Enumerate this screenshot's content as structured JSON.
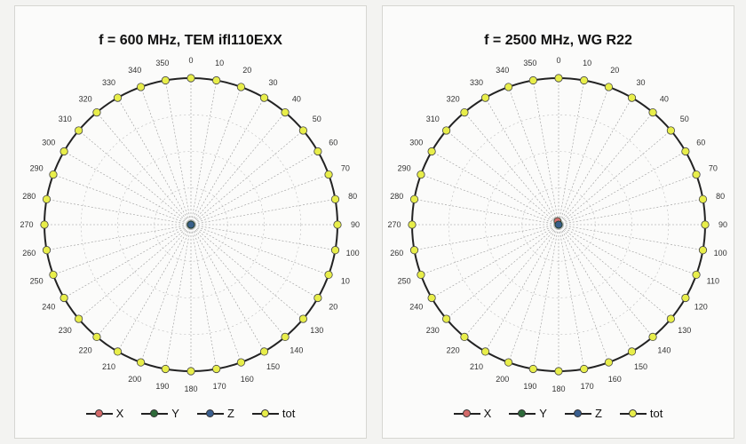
{
  "chart_data": [
    {
      "type": "polar",
      "title": "f = 600 MHz, TEM ifl110EXX",
      "theta_ticks": [
        "0",
        "10",
        "20",
        "30",
        "40",
        "50",
        "60",
        "70",
        "80",
        "90",
        "100",
        "110",
        "120",
        "130",
        "140",
        "150",
        "160",
        "170",
        "180",
        "190",
        "200",
        "210",
        "220",
        "230",
        "240",
        "250",
        "260",
        "270",
        "280",
        "290",
        "300",
        "310",
        "320",
        "330",
        "340",
        "350"
      ],
      "theta_tick_labels_shown": [
        "0",
        "10",
        "20",
        "30",
        "40",
        "50",
        "60",
        "70",
        "80",
        "90",
        "100",
        "10",
        "20",
        "130",
        "140",
        "150",
        "160",
        "170",
        "180",
        "190",
        "200",
        "210",
        "220",
        "230",
        "240",
        "250",
        "260",
        "270",
        "280",
        "290",
        "300",
        "310",
        "320",
        "330",
        "340",
        "350"
      ],
      "grid": true,
      "legend_position": "bottom",
      "series": [
        {
          "name": "X",
          "color": "#d46a6a",
          "r": 0.03
        },
        {
          "name": "Y",
          "color": "#2e6b3a",
          "r": 0.05
        },
        {
          "name": "Z",
          "color": "#3a5f8f",
          "r": 0.035
        },
        {
          "name": "tot",
          "color": "#e8ee4a",
          "r": 1.0
        }
      ]
    },
    {
      "type": "polar",
      "title": "f = 2500 MHz, WG R22",
      "theta_ticks": [
        "0",
        "10",
        "20",
        "30",
        "40",
        "50",
        "60",
        "70",
        "80",
        "90",
        "100",
        "110",
        "120",
        "130",
        "140",
        "150",
        "160",
        "170",
        "180",
        "190",
        "200",
        "210",
        "220",
        "230",
        "240",
        "250",
        "260",
        "270",
        "280",
        "290",
        "300",
        "310",
        "320",
        "330",
        "340",
        "350"
      ],
      "theta_tick_labels_shown": [
        "0",
        "10",
        "20",
        "30",
        "40",
        "50",
        "60",
        "70",
        "80",
        "90",
        "100",
        "110",
        "120",
        "130",
        "140",
        "150",
        "160",
        "170",
        "180",
        "190",
        "200",
        "210",
        "220",
        "230",
        "240",
        "250",
        "260",
        "270",
        "280",
        "290",
        "300",
        "310",
        "320",
        "330",
        "340",
        "350"
      ],
      "grid": true,
      "legend_position": "bottom",
      "series": [
        {
          "name": "X",
          "color": "#d46a6a",
          "r": 0.04
        },
        {
          "name": "Y",
          "color": "#2e6b3a",
          "r": 0.06
        },
        {
          "name": "Z",
          "color": "#3a5f8f",
          "r": 0.04
        },
        {
          "name": "tot",
          "color": "#e8ee4a",
          "r": 1.0
        }
      ]
    }
  ],
  "legend": {
    "x_label": "X",
    "y_label": "Y",
    "z_label": "Z",
    "tot_label": "tot"
  }
}
